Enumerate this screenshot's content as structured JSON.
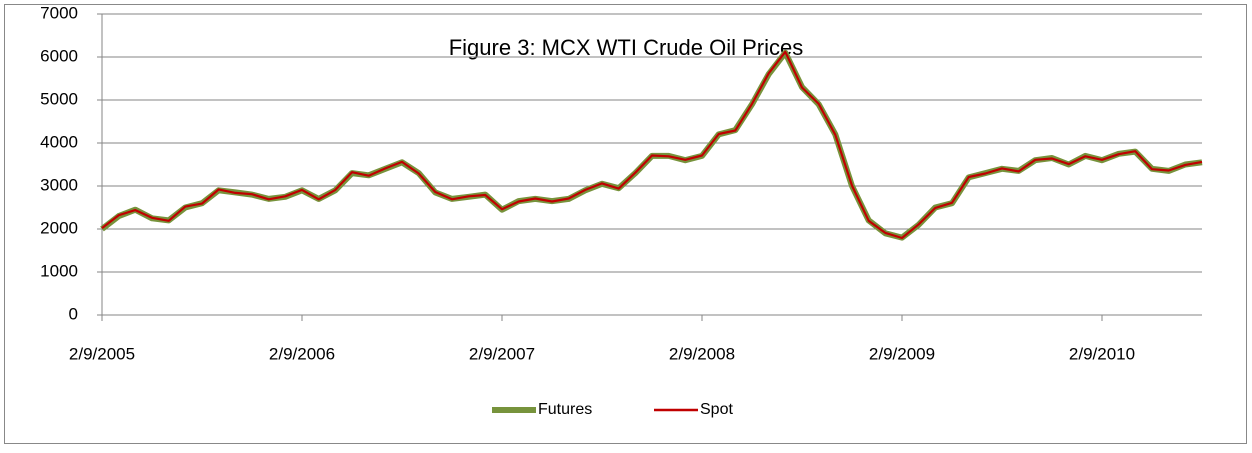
{
  "chart_data": {
    "type": "line",
    "title": "Figure 3: MCX WTI Crude Oil Prices",
    "categories": [
      "2/9/2005",
      null,
      null,
      null,
      null,
      null,
      null,
      null,
      null,
      null,
      null,
      null,
      "2/9/2006",
      null,
      null,
      null,
      null,
      null,
      null,
      null,
      null,
      null,
      null,
      null,
      "2/9/2007",
      null,
      null,
      null,
      null,
      null,
      null,
      null,
      null,
      null,
      null,
      null,
      "2/9/2008",
      null,
      null,
      null,
      null,
      null,
      null,
      null,
      null,
      null,
      null,
      null,
      "2/9/2009",
      null,
      null,
      null,
      null,
      null,
      null,
      null,
      null,
      null,
      null,
      null,
      "2/9/2010",
      null,
      null,
      null,
      null,
      null,
      null
    ],
    "series": [
      {
        "name": "Futures",
        "color": "#77933c",
        "values": [
          2000,
          2300,
          2450,
          2250,
          2200,
          2500,
          2600,
          2900,
          2850,
          2800,
          2700,
          2750,
          2900,
          2700,
          2900,
          3300,
          3250,
          3400,
          3550,
          3300,
          2850,
          2700,
          2750,
          2800,
          2450,
          2650,
          2700,
          2650,
          2700,
          2900,
          3050,
          2950,
          3300,
          3700,
          3700,
          3600,
          3700,
          4200,
          4300,
          4900,
          5600,
          6100,
          5300,
          4900,
          4200,
          3000,
          2200,
          1900,
          1800,
          2100,
          2500,
          2600,
          3200,
          3300,
          3400,
          3350,
          3600,
          3650,
          3500,
          3700,
          3600,
          3750,
          3800,
          3400,
          3350,
          3500,
          3550
        ]
      },
      {
        "name": "Spot",
        "color": "#c00000",
        "values": [
          2020,
          2320,
          2440,
          2260,
          2190,
          2520,
          2590,
          2920,
          2840,
          2810,
          2690,
          2760,
          2910,
          2690,
          2910,
          3320,
          3240,
          3410,
          3560,
          3290,
          2860,
          2690,
          2760,
          2790,
          2460,
          2640,
          2710,
          2640,
          2710,
          2910,
          3060,
          2940,
          3310,
          3710,
          3690,
          3610,
          3710,
          4210,
          4290,
          4910,
          5620,
          6120,
          5290,
          4910,
          4190,
          3010,
          2190,
          1910,
          1790,
          2110,
          2490,
          2610,
          3210,
          3290,
          3410,
          3340,
          3610,
          3640,
          3510,
          3690,
          3610,
          3740,
          3810,
          3390,
          3360,
          3490,
          3560
        ]
      }
    ],
    "ylim": [
      0,
      7000
    ],
    "yticks": [
      0,
      1000,
      2000,
      3000,
      4000,
      5000,
      6000,
      7000
    ],
    "grid": true,
    "legend": "bottom"
  }
}
